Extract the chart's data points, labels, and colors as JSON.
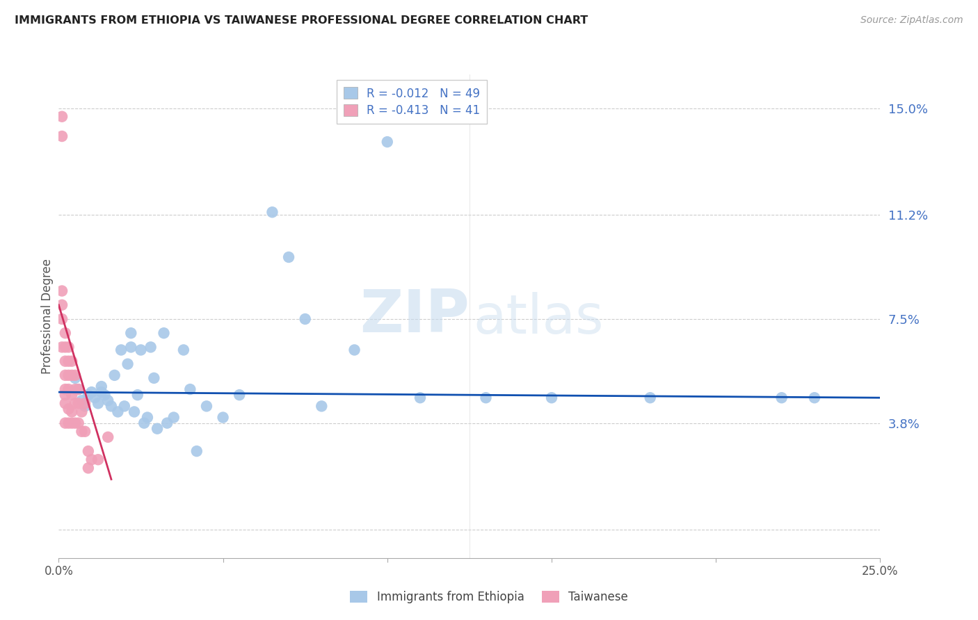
{
  "title": "IMMIGRANTS FROM ETHIOPIA VS TAIWANESE PROFESSIONAL DEGREE CORRELATION CHART",
  "source": "Source: ZipAtlas.com",
  "ylabel": "Professional Degree",
  "yticks": [
    0.0,
    0.038,
    0.075,
    0.112,
    0.15
  ],
  "ytick_labels": [
    "",
    "3.8%",
    "7.5%",
    "11.2%",
    "15.0%"
  ],
  "xlim": [
    0.0,
    0.25
  ],
  "ylim": [
    -0.01,
    0.162
  ],
  "legend_r1": "R = -0.012",
  "legend_n1": "N = 49",
  "legend_r2": "R = -0.413",
  "legend_n2": "N = 41",
  "color_blue": "#A8C8E8",
  "color_pink": "#F0A0B8",
  "line_blue": "#1050B0",
  "line_pink": "#D03060",
  "watermark_zip": "ZIP",
  "watermark_atlas": "atlas",
  "blue_scatter_x": [
    0.005,
    0.006,
    0.007,
    0.008,
    0.009,
    0.01,
    0.011,
    0.012,
    0.013,
    0.013,
    0.014,
    0.015,
    0.016,
    0.017,
    0.018,
    0.019,
    0.02,
    0.021,
    0.022,
    0.022,
    0.023,
    0.024,
    0.025,
    0.026,
    0.027,
    0.028,
    0.029,
    0.03,
    0.032,
    0.033,
    0.035,
    0.038,
    0.04,
    0.042,
    0.045,
    0.05,
    0.055,
    0.065,
    0.07,
    0.075,
    0.08,
    0.09,
    0.1,
    0.11,
    0.13,
    0.15,
    0.18,
    0.22,
    0.23
  ],
  "blue_scatter_y": [
    0.054,
    0.05,
    0.046,
    0.044,
    0.048,
    0.049,
    0.047,
    0.045,
    0.049,
    0.051,
    0.048,
    0.046,
    0.044,
    0.055,
    0.042,
    0.064,
    0.044,
    0.059,
    0.065,
    0.07,
    0.042,
    0.048,
    0.064,
    0.038,
    0.04,
    0.065,
    0.054,
    0.036,
    0.07,
    0.038,
    0.04,
    0.064,
    0.05,
    0.028,
    0.044,
    0.04,
    0.048,
    0.113,
    0.097,
    0.075,
    0.044,
    0.064,
    0.138,
    0.047,
    0.047,
    0.047,
    0.047,
    0.047,
    0.047
  ],
  "pink_scatter_x": [
    0.001,
    0.001,
    0.001,
    0.001,
    0.001,
    0.001,
    0.002,
    0.002,
    0.002,
    0.002,
    0.002,
    0.002,
    0.002,
    0.002,
    0.003,
    0.003,
    0.003,
    0.003,
    0.003,
    0.003,
    0.004,
    0.004,
    0.004,
    0.004,
    0.004,
    0.005,
    0.005,
    0.005,
    0.005,
    0.006,
    0.006,
    0.006,
    0.007,
    0.007,
    0.008,
    0.008,
    0.009,
    0.009,
    0.01,
    0.012,
    0.015
  ],
  "pink_scatter_y": [
    0.147,
    0.14,
    0.085,
    0.08,
    0.075,
    0.065,
    0.07,
    0.065,
    0.06,
    0.055,
    0.05,
    0.048,
    0.045,
    0.038,
    0.065,
    0.06,
    0.055,
    0.05,
    0.043,
    0.038,
    0.06,
    0.055,
    0.048,
    0.042,
    0.038,
    0.055,
    0.05,
    0.045,
    0.038,
    0.05,
    0.045,
    0.038,
    0.042,
    0.035,
    0.045,
    0.035,
    0.028,
    0.022,
    0.025,
    0.025,
    0.033
  ],
  "blue_line_x": [
    0.0,
    0.25
  ],
  "blue_line_y": [
    0.049,
    0.047
  ],
  "pink_line_x": [
    0.0,
    0.016
  ],
  "pink_line_y": [
    0.08,
    0.018
  ]
}
